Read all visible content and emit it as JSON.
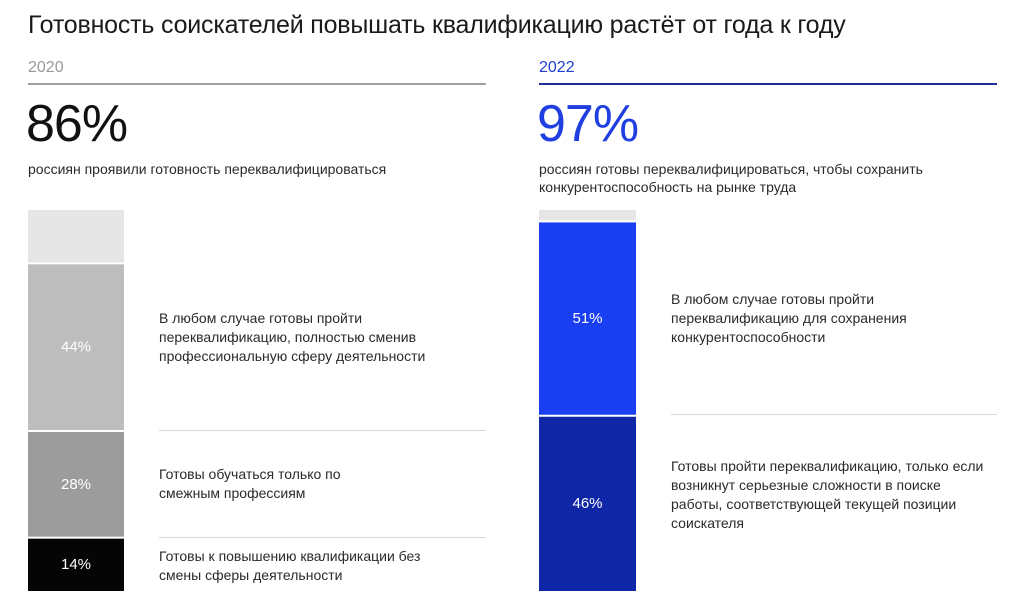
{
  "title": "Готовность соискателей повышать квалификацию растёт от года к году",
  "chart_data": [
    {
      "type": "bar",
      "stacked": true,
      "year": "2020",
      "headline": "86%",
      "subtitle": "россиян проявили готовность переквалифицироваться",
      "ylim": [
        0,
        100
      ],
      "series": [
        {
          "label": "14%",
          "value": 14,
          "color": "#050505",
          "description": "Готовы к повышению квалификации без смены сферы деятельности"
        },
        {
          "label": "28%",
          "value": 28,
          "color": "#9c9c9c",
          "description": "Готовы обучаться только по смежным профессиям"
        },
        {
          "label": "44%",
          "value": 44,
          "color": "#bdbdbd",
          "description": "В любом случае готовы пройти переквалификацию, полностью сменив профессиональную сферу деятельности"
        }
      ],
      "remainder_color": "#e6e6e6"
    },
    {
      "type": "bar",
      "stacked": true,
      "year": "2022",
      "headline": "97%",
      "subtitle": "россиян готовы переквалифицироваться, чтобы сохранить конкурентоспособность на рынке труда",
      "ylim": [
        0,
        100
      ],
      "series": [
        {
          "label": "46%",
          "value": 46,
          "color": "#0f27a6",
          "description": "Готовы пройти переквалификацию, только если возникнут серьезные сложности в поиске работы, соответствующей текущей позиции соискателя"
        },
        {
          "label": "51%",
          "value": 51,
          "color": "#1a3ef2",
          "description": "В любом случае готовы пройти переквалификацию для сохранения конкурентоспособности"
        }
      ],
      "remainder_color": "#e6e6e6"
    }
  ],
  "colors": {
    "year_2020": "#9a9a9a",
    "year_2022": "#1f3fd1",
    "headline_2022": "#1f3fe0"
  }
}
